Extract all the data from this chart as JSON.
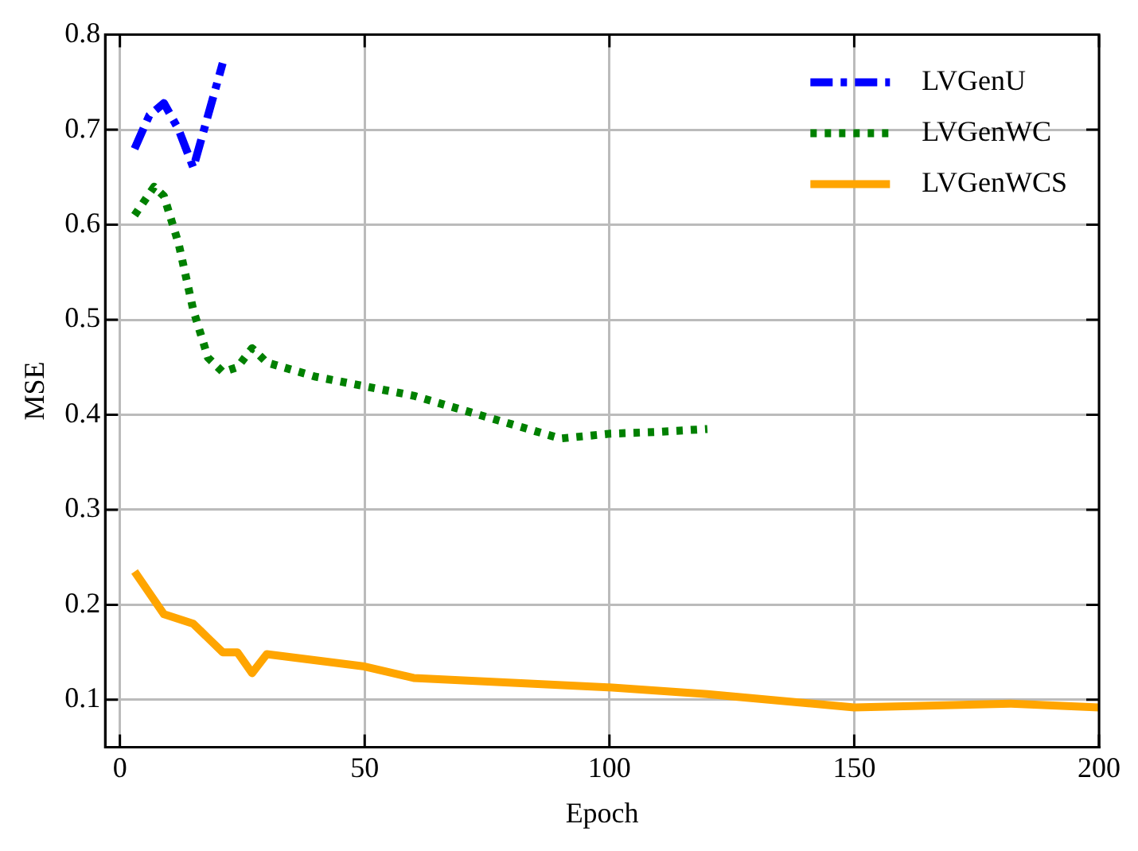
{
  "chart_data": {
    "type": "line",
    "xlabel": "Epoch",
    "ylabel": "MSE",
    "xlim": [
      -3,
      200
    ],
    "xticks": [
      0,
      50,
      100,
      150,
      200
    ],
    "ylim": [
      0.05,
      0.8
    ],
    "yticks": [
      0.1,
      0.2,
      0.3,
      0.4,
      0.5,
      0.6,
      0.7,
      0.8
    ],
    "grid": true,
    "legend": "top right",
    "marker": "none",
    "series": [
      {
        "name": "LVGenU",
        "color": "#0000ff",
        "line_style": "dashdot",
        "x": [
          3,
          6,
          9,
          12,
          15,
          21
        ],
        "values": [
          0.68,
          0.715,
          0.728,
          0.7,
          0.66,
          0.77
        ]
      },
      {
        "name": "LVGenWC",
        "color": "#008000",
        "line_style": "dotted",
        "x": [
          3,
          7,
          9,
          12,
          15,
          18,
          21,
          24,
          27,
          30,
          40,
          50,
          60,
          70,
          80,
          90,
          100,
          110,
          120
        ],
        "values": [
          0.61,
          0.64,
          0.63,
          0.58,
          0.51,
          0.46,
          0.445,
          0.45,
          0.47,
          0.455,
          0.44,
          0.43,
          0.42,
          0.405,
          0.39,
          0.375,
          0.38,
          0.382,
          0.385
        ]
      },
      {
        "name": "LVGenWCS",
        "color": "#ffa500",
        "line_style": "solid",
        "x": [
          3,
          9,
          15,
          18,
          21,
          24,
          27,
          30,
          50,
          60,
          100,
          120,
          150,
          182,
          200
        ],
        "values": [
          0.235,
          0.19,
          0.18,
          0.165,
          0.15,
          0.15,
          0.128,
          0.148,
          0.135,
          0.123,
          0.113,
          0.106,
          0.092,
          0.096,
          0.092
        ]
      }
    ]
  }
}
